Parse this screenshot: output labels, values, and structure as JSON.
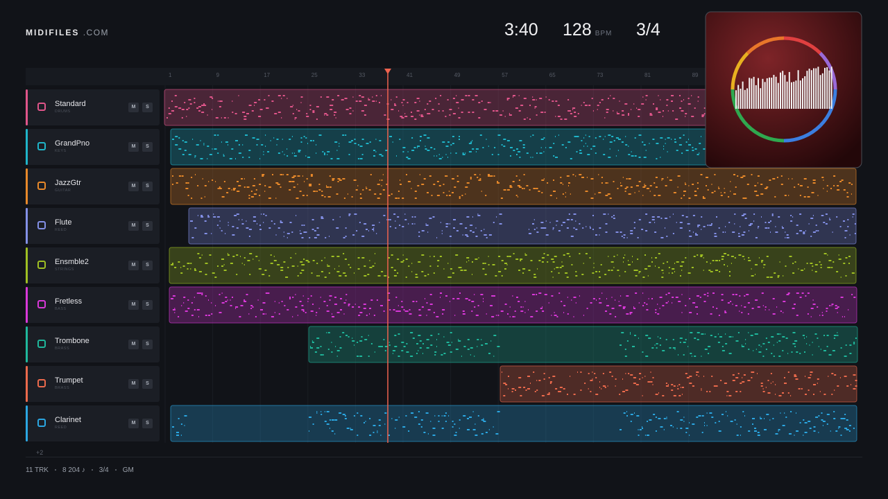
{
  "header": {
    "brand": "MIDIFILES",
    "domain": ".COM",
    "time": "3:40",
    "tempo": "128",
    "tempo_unit": "BPM",
    "meter": "3/4"
  },
  "ruler": [
    1,
    9,
    17,
    25,
    33,
    41,
    49,
    57,
    65,
    73,
    81,
    89
  ],
  "tracks": [
    {
      "name": "Standard",
      "category": "DRUMS",
      "color": "#e0558a",
      "mute": "M",
      "solo": "S"
    },
    {
      "name": "GrandPno",
      "category": "KEYS",
      "color": "#1fb5c9",
      "mute": "M",
      "solo": "S"
    },
    {
      "name": "JazzGtr",
      "category": "GUITAR",
      "color": "#e8892a",
      "mute": "M",
      "solo": "S"
    },
    {
      "name": "Flute",
      "category": "REED",
      "color": "#8390e6",
      "mute": "M",
      "solo": "S"
    },
    {
      "name": "Ensmble2",
      "category": "STRINGS",
      "color": "#9fc023",
      "mute": "M",
      "solo": "S"
    },
    {
      "name": "Fretless",
      "category": "BASS",
      "color": "#d938d9",
      "mute": "M",
      "solo": "S"
    },
    {
      "name": "Trombone",
      "category": "BRASS",
      "color": "#1fb89c",
      "mute": "M",
      "solo": "S"
    },
    {
      "name": "Trumpet",
      "category": "BRASS",
      "color": "#ec6a4c",
      "mute": "M",
      "solo": "S"
    },
    {
      "name": "Clarinet",
      "category": "REED",
      "color": "#2ba7e2",
      "mute": "M",
      "solo": "S"
    }
  ],
  "more": "+2",
  "footer": [
    "11 TRK",
    "8 204 ♪",
    "3/4",
    "GM"
  ]
}
